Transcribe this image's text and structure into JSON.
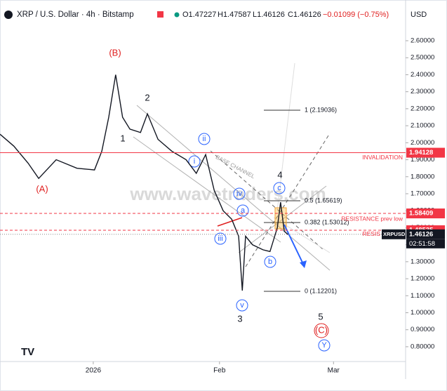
{
  "chart_data": {
    "type": "line",
    "title": "XRP / U.S. Dollar · 4h · Bitstamp",
    "ohlc": [
      "O1.47227",
      "H1.47587",
      "L1.46126",
      "C1.46126",
      "−0.01099 (−0.75%)"
    ],
    "currency": "USD",
    "watermark": "www.wavetraders.com",
    "channel_label": "BASE CHANNEL",
    "symbol_tag": "XRPUSD",
    "countdown": "02:51:58",
    "resis_cut": "RESIS",
    "annotations": [
      "(B)",
      "(A)",
      "2",
      "1",
      "ii",
      "i",
      "iv",
      "a",
      "iii",
      "v",
      "3",
      "b",
      "c",
      "4",
      "5",
      "(C)",
      "Y"
    ],
    "fib_labels": [
      "1 (2.19036)",
      "0.5 (1.65619)",
      "0.382 (1.53012)",
      "0 (1.12201)"
    ],
    "levels": [
      {
        "value": 1.94128,
        "text": "INVALIDATION",
        "color": "#f23645"
      },
      {
        "value": 1.58409,
        "text": "RESISTANCE prev low",
        "color": "#f23645"
      },
      {
        "value": 1.48535,
        "color": "#f23645"
      },
      {
        "value": 1.46126,
        "color": "#131722"
      }
    ],
    "series": [
      {
        "name": "XRPUSD",
        "color": "#131722",
        "x": [
          -22.9,
          -19.5,
          -16.0,
          -13.4,
          -9.1,
          -4.0,
          0.3,
          2.1,
          3.8,
          5.5,
          7.2,
          9.0,
          11.6,
          13.3,
          15.9,
          19.3,
          22.8,
          25.3,
          27.6,
          29.7,
          31.9,
          34.0,
          35.7,
          36.6,
          37.4,
          39.1,
          41.7,
          43.4,
          45.2,
          46.0,
          46.9,
          47.8
        ],
        "values": [
          2.05,
          1.98,
          1.88,
          1.79,
          1.9,
          1.85,
          1.84,
          1.95,
          2.15,
          2.4,
          2.15,
          2.08,
          2.06,
          2.17,
          2.02,
          1.95,
          1.9,
          1.82,
          1.93,
          1.72,
          1.6,
          1.55,
          1.45,
          1.13,
          1.45,
          1.4,
          1.37,
          1.36,
          1.5,
          1.65,
          1.48,
          1.46
        ]
      }
    ],
    "xlim": [
      -22.9,
      76.7
    ],
    "xticks": [
      {
        "value": 0,
        "label": "2026"
      },
      {
        "value": 31,
        "label": "Feb"
      },
      {
        "value": 59,
        "label": "Mar"
      }
    ],
    "ylim": [
      0.713,
      2.79
    ],
    "yticks": [
      {
        "value": 0.8,
        "label": "0.80000"
      },
      {
        "value": 0.9,
        "label": "0.90000"
      },
      {
        "value": 1.0,
        "label": "1.00000"
      },
      {
        "value": 1.1,
        "label": "1.10000"
      },
      {
        "value": 1.2,
        "label": "1.20000"
      },
      {
        "value": 1.3,
        "label": "1.30000"
      },
      {
        "value": 1.4,
        "label": "1.40000"
      },
      {
        "value": 1.5,
        "label": "1.50000"
      },
      {
        "value": 1.6,
        "label": "1.60000"
      },
      {
        "value": 1.7,
        "label": "1.70000"
      },
      {
        "value": 1.8,
        "label": "1.80000"
      },
      {
        "value": 1.9,
        "label": "1.90000"
      },
      {
        "value": 2.0,
        "label": "2.00000"
      },
      {
        "value": 2.1,
        "label": "2.10000"
      },
      {
        "value": 2.2,
        "label": "2.20000"
      },
      {
        "value": 2.3,
        "label": "2.30000"
      },
      {
        "value": 2.4,
        "label": "2.40000"
      },
      {
        "value": 2.5,
        "label": "2.50000"
      },
      {
        "value": 2.6,
        "label": "2.60000"
      }
    ]
  }
}
